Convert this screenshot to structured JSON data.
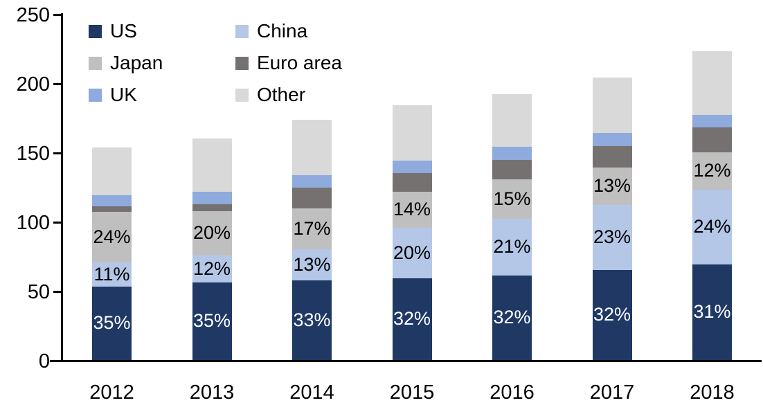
{
  "chart_data": {
    "type": "bar",
    "stacked": true,
    "title": "",
    "xlabel": "",
    "ylabel": "",
    "categories": [
      "2012",
      "2013",
      "2014",
      "2015",
      "2016",
      "2017",
      "2018"
    ],
    "series": [
      {
        "name": "US",
        "color": "#1f3864",
        "label_color": "#ffffff",
        "values": [
          53,
          56,
          57.5,
          59,
          61,
          65,
          69
        ],
        "pct_labels": [
          "35%",
          "35%",
          "33%",
          "32%",
          "32%",
          "32%",
          "31%"
        ]
      },
      {
        "name": "China",
        "color": "#b4c7e7",
        "label_color": "#000000",
        "values": [
          17.5,
          19.5,
          22.5,
          36.5,
          41,
          47,
          54
        ],
        "pct_labels": [
          "11%",
          "12%",
          "13%",
          "20%",
          "21%",
          "23%",
          "24%"
        ]
      },
      {
        "name": "Japan",
        "color": "#bfbfbf",
        "label_color": "#000000",
        "values": [
          36.5,
          32,
          29.5,
          26,
          28.5,
          27,
          27
        ],
        "pct_labels": [
          "24%",
          "20%",
          "17%",
          "14%",
          "15%",
          "13%",
          "12%"
        ]
      },
      {
        "name": "Euro area",
        "color": "#767171",
        "label_color": "",
        "values": [
          4,
          5,
          15,
          13.5,
          14,
          15.5,
          18
        ],
        "pct_labels": [
          "",
          "",
          "",
          "",
          "",
          "",
          ""
        ]
      },
      {
        "name": "UK",
        "color": "#8faadc",
        "label_color": "",
        "values": [
          8,
          9,
          9,
          9,
          9.5,
          9.5,
          9
        ],
        "pct_labels": [
          "",
          "",
          "",
          "",
          "",
          "",
          ""
        ]
      },
      {
        "name": "Other",
        "color": "#d9d9d9",
        "label_color": "",
        "values": [
          34.5,
          38.5,
          40,
          40,
          38,
          40,
          46
        ],
        "pct_labels": [
          "",
          "",
          "",
          "",
          "",
          "",
          ""
        ]
      }
    ],
    "totals": [
      153.5,
      160,
      173.5,
      184,
      192,
      204,
      223
    ],
    "ylim": [
      0,
      250
    ],
    "yticks": [
      0,
      50,
      100,
      150,
      200,
      250
    ],
    "grid": false,
    "legend_position": "top-left",
    "axis_color": "#000000"
  },
  "legend": {
    "items": [
      "US",
      "China",
      "Japan",
      "Euro area",
      "UK",
      "Other"
    ]
  }
}
